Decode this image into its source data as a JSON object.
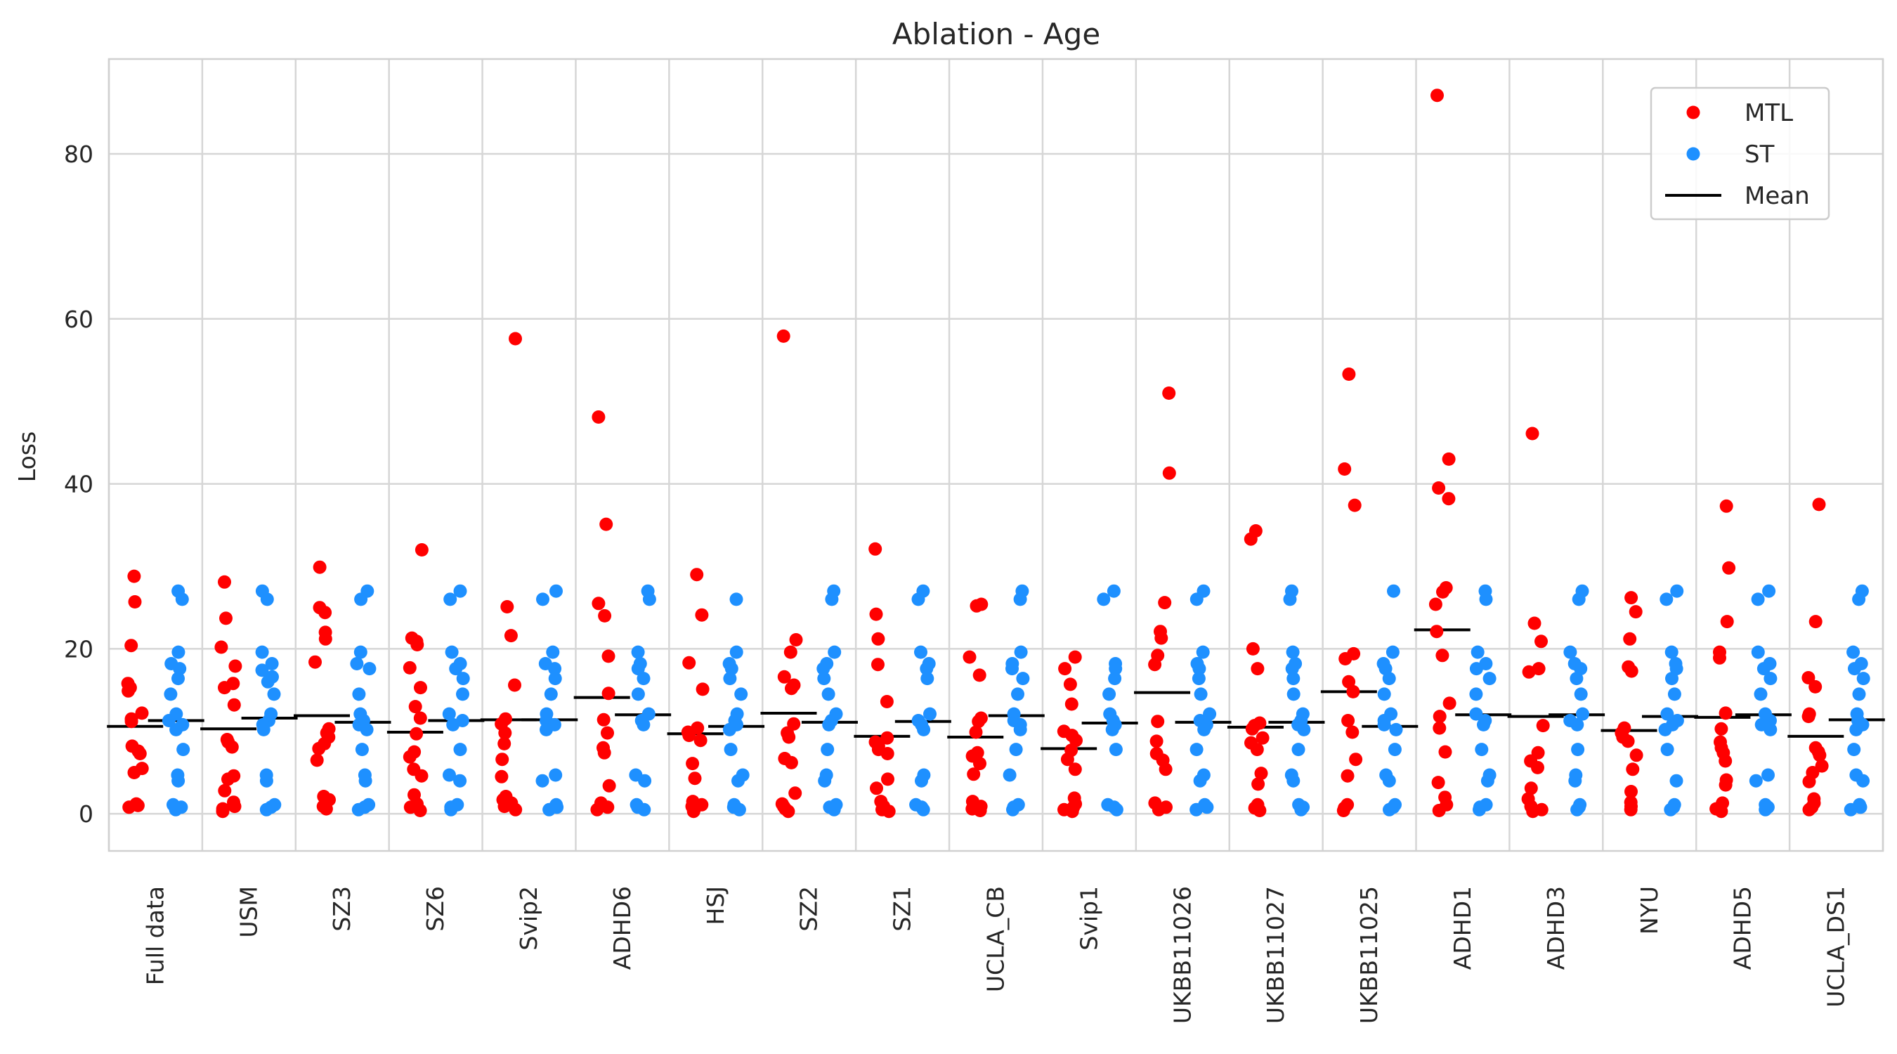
{
  "chart_data": {
    "type": "scatter",
    "title": "Ablation - Age",
    "xlabel": "",
    "ylabel": "Loss",
    "ylim": [
      -4.5,
      91.5
    ],
    "yticks": [
      0,
      20,
      40,
      60,
      80
    ],
    "grid": true,
    "legend_position": "top-right",
    "categories": [
      "Full data",
      "USM",
      "SZ3",
      "SZ6",
      "Svip2",
      "ADHD6",
      "HSJ",
      "SZ2",
      "SZ1",
      "UCLA_CB",
      "Svip1",
      "UKBB11026",
      "UKBB11027",
      "UKBB11025",
      "ADHD1",
      "ADHD3",
      "NYU",
      "ADHD5",
      "UCLA_DS1"
    ],
    "legend": [
      {
        "label": "MTL",
        "kind": "marker",
        "color": "#ff0000"
      },
      {
        "label": "ST",
        "kind": "marker",
        "color": "#1e90ff"
      },
      {
        "label": "Mean",
        "kind": "line",
        "color": "#000000"
      }
    ],
    "series": [
      {
        "name": "MTL",
        "color": "#ff0000",
        "points": [
          [
            28.8,
            25.7,
            20.4,
            15.8,
            15.3,
            14.9,
            12.2,
            11.5,
            11.2,
            8.2,
            7.6,
            7.3,
            5.5,
            5.0,
            1.2,
            1.0,
            0.8
          ],
          [
            28.1,
            23.7,
            20.2,
            17.9,
            15.8,
            15.3,
            13.2,
            9.0,
            8.7,
            8.1,
            4.6,
            4.2,
            2.8,
            1.4,
            0.9,
            0.6,
            0.3
          ],
          [
            29.9,
            25.0,
            24.4,
            22.0,
            21.2,
            18.4,
            10.3,
            9.8,
            9.3,
            8.5,
            7.9,
            6.5,
            2.1,
            1.7,
            0.9,
            0.6
          ],
          [
            32.0,
            21.3,
            20.9,
            20.5,
            17.7,
            15.3,
            13.0,
            11.6,
            9.7,
            7.5,
            6.9,
            5.4,
            4.6,
            2.3,
            1.2,
            0.8,
            0.4
          ],
          [
            57.6,
            25.1,
            21.6,
            15.6,
            11.5,
            10.9,
            9.8,
            8.5,
            6.6,
            4.5,
            2.1,
            1.7,
            1.3,
            0.9,
            0.5
          ],
          [
            48.1,
            35.1,
            25.5,
            24.0,
            19.1,
            14.6,
            11.4,
            9.8,
            8.0,
            7.4,
            3.4,
            1.3,
            0.8,
            0.5
          ],
          [
            29.0,
            24.1,
            18.3,
            15.1,
            10.4,
            9.9,
            9.5,
            8.9,
            6.1,
            4.3,
            1.5,
            1.1,
            0.9,
            0.5,
            0.3
          ],
          [
            57.9,
            21.1,
            19.6,
            16.6,
            15.6,
            15.2,
            10.9,
            9.8,
            9.3,
            6.7,
            6.2,
            2.5,
            1.2,
            0.9,
            0.6,
            0.3
          ],
          [
            32.1,
            24.2,
            21.2,
            18.1,
            13.6,
            9.2,
            8.7,
            8.2,
            7.8,
            7.3,
            4.2,
            3.1,
            1.5,
            0.9,
            0.5,
            0.3
          ],
          [
            25.4,
            25.2,
            19.0,
            16.8,
            11.6,
            11.2,
            9.9,
            7.4,
            7.0,
            6.1,
            4.8,
            1.5,
            0.9,
            0.6,
            0.4
          ],
          [
            19.0,
            17.6,
            15.7,
            13.3,
            10.0,
            9.5,
            8.9,
            7.7,
            6.6,
            5.4,
            1.9,
            1.2,
            0.8,
            0.5,
            0.3
          ],
          [
            51.0,
            41.3,
            25.6,
            22.1,
            21.3,
            19.2,
            18.1,
            11.2,
            8.8,
            7.3,
            6.5,
            5.4,
            1.3,
            0.8,
            0.5
          ],
          [
            34.3,
            33.3,
            20.0,
            17.6,
            11.0,
            10.7,
            10.3,
            9.2,
            8.6,
            7.8,
            4.9,
            3.6,
            1.1,
            0.7,
            0.4
          ],
          [
            53.3,
            41.8,
            37.4,
            19.4,
            18.8,
            16.0,
            14.8,
            11.3,
            9.9,
            6.6,
            4.6,
            1.1,
            0.7,
            0.4
          ],
          [
            87.1,
            43.0,
            39.5,
            38.2,
            27.4,
            26.9,
            25.4,
            22.1,
            19.2,
            13.4,
            11.8,
            10.4,
            7.5,
            3.8,
            2.0,
            1.1,
            0.4
          ],
          [
            46.1,
            23.1,
            20.9,
            17.6,
            17.2,
            10.7,
            7.4,
            6.4,
            5.6,
            3.1,
            1.8,
            0.9,
            0.5,
            0.3
          ],
          [
            26.2,
            24.5,
            21.2,
            17.8,
            17.3,
            10.4,
            9.8,
            9.3,
            8.8,
            7.1,
            5.4,
            2.7,
            1.4,
            0.9,
            0.5
          ],
          [
            37.3,
            29.8,
            23.3,
            19.6,
            18.9,
            12.2,
            10.3,
            8.7,
            8.0,
            7.4,
            6.4,
            4.1,
            3.5,
            1.3,
            0.6,
            0.3
          ],
          [
            37.5,
            23.3,
            16.5,
            15.4,
            12.1,
            11.8,
            8.0,
            7.5,
            7.1,
            5.8,
            5.0,
            3.9,
            1.8,
            1.3,
            0.8,
            0.5
          ]
        ],
        "means": [
          10.6,
          10.3,
          11.9,
          9.9,
          11.4,
          14.1,
          9.7,
          12.2,
          9.4,
          9.3,
          7.9,
          14.7,
          10.5,
          14.8,
          22.3,
          11.8,
          10.1,
          11.7,
          9.4
        ]
      },
      {
        "name": "ST",
        "color": "#1e90ff",
        "points": [
          [
            27.0,
            26.0,
            19.6,
            18.2,
            17.6,
            16.4,
            14.5,
            12.1,
            11.3,
            10.8,
            10.2,
            7.8,
            4.7,
            4.0,
            1.1,
            0.8,
            0.5
          ],
          [
            27.0,
            26.0,
            19.6,
            18.2,
            17.4,
            16.6,
            16.0,
            14.5,
            12.1,
            11.3,
            10.8,
            10.2,
            4.7,
            4.0,
            1.1,
            0.8,
            0.5
          ],
          [
            27.0,
            26.0,
            19.6,
            18.2,
            17.6,
            14.5,
            12.1,
            11.3,
            10.8,
            10.2,
            7.8,
            4.7,
            4.0,
            1.1,
            0.8,
            0.5
          ],
          [
            27.0,
            26.0,
            19.6,
            18.2,
            17.6,
            16.4,
            14.5,
            12.1,
            11.3,
            10.8,
            7.8,
            4.7,
            4.0,
            1.1,
            0.8,
            0.5
          ],
          [
            27.0,
            26.0,
            19.6,
            18.2,
            17.6,
            16.4,
            14.5,
            12.1,
            11.3,
            10.8,
            10.2,
            4.7,
            4.0,
            1.1,
            0.8,
            0.5
          ],
          [
            27.0,
            26.0,
            19.6,
            18.2,
            17.6,
            16.4,
            14.5,
            12.1,
            11.3,
            10.8,
            4.7,
            4.0,
            1.1,
            0.8,
            0.5
          ],
          [
            26.0,
            19.6,
            18.2,
            17.6,
            16.4,
            14.5,
            12.1,
            11.3,
            10.8,
            10.2,
            7.8,
            4.7,
            4.0,
            1.1,
            0.8,
            0.5
          ],
          [
            27.0,
            26.0,
            19.6,
            18.2,
            17.6,
            16.4,
            14.5,
            12.1,
            11.3,
            10.8,
            7.8,
            4.7,
            4.0,
            1.1,
            0.8,
            0.5
          ],
          [
            27.0,
            26.0,
            19.6,
            18.2,
            17.6,
            16.4,
            12.1,
            11.3,
            10.8,
            10.2,
            4.7,
            4.0,
            1.1,
            0.8,
            0.5
          ],
          [
            27.0,
            26.0,
            19.6,
            18.2,
            17.6,
            16.4,
            14.5,
            12.1,
            11.3,
            10.8,
            10.2,
            7.8,
            4.7,
            1.1,
            0.8,
            0.5
          ],
          [
            27.0,
            26.0,
            18.2,
            17.6,
            16.4,
            14.5,
            12.1,
            11.3,
            10.8,
            10.2,
            7.8,
            1.1,
            0.8,
            0.5
          ],
          [
            27.0,
            26.0,
            19.6,
            18.2,
            17.6,
            16.4,
            14.5,
            12.1,
            11.3,
            10.8,
            10.2,
            7.8,
            4.7,
            4.0,
            1.1,
            0.8,
            0.5
          ],
          [
            27.0,
            26.0,
            19.6,
            18.2,
            17.6,
            16.4,
            14.5,
            12.1,
            11.3,
            10.8,
            10.2,
            7.8,
            4.7,
            4.0,
            1.1,
            0.8,
            0.5
          ],
          [
            27.0,
            19.6,
            18.2,
            17.6,
            16.4,
            14.5,
            12.1,
            11.3,
            10.8,
            10.2,
            7.8,
            4.7,
            4.0,
            1.1,
            0.8,
            0.5
          ],
          [
            27.0,
            26.0,
            19.6,
            18.2,
            17.6,
            16.4,
            14.5,
            12.1,
            11.3,
            10.8,
            7.8,
            4.7,
            4.0,
            1.1,
            0.8,
            0.5
          ],
          [
            27.0,
            26.0,
            19.6,
            18.2,
            17.6,
            16.4,
            14.5,
            12.1,
            11.3,
            10.8,
            7.8,
            4.7,
            4.0,
            1.1,
            0.8,
            0.5
          ],
          [
            27.0,
            26.0,
            19.6,
            18.2,
            17.6,
            16.4,
            14.5,
            12.1,
            11.3,
            10.8,
            10.2,
            7.8,
            4.0,
            1.1,
            0.8,
            0.5
          ],
          [
            27.0,
            26.0,
            19.6,
            18.2,
            17.6,
            16.4,
            14.5,
            12.1,
            11.3,
            10.8,
            10.2,
            4.7,
            4.0,
            1.1,
            0.8,
            0.5
          ],
          [
            27.0,
            26.0,
            19.6,
            18.2,
            17.6,
            16.4,
            14.5,
            12.1,
            11.3,
            10.8,
            10.2,
            7.8,
            4.7,
            4.0,
            1.1,
            0.8,
            0.5
          ]
        ],
        "means": [
          11.3,
          11.6,
          11.1,
          11.3,
          11.4,
          12.0,
          10.6,
          11.1,
          11.2,
          11.9,
          11.0,
          11.1,
          11.1,
          10.6,
          12.0,
          12.0,
          11.8,
          12.0,
          11.4
        ]
      }
    ]
  }
}
